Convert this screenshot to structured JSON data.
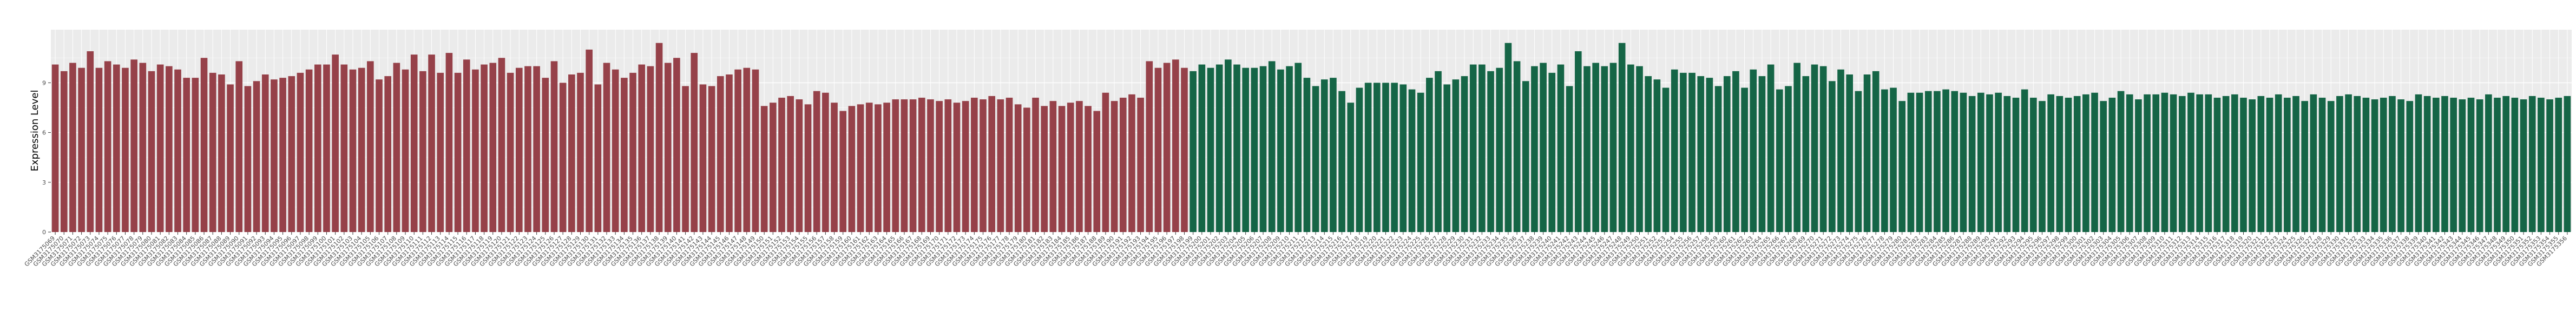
{
  "chart_data": {
    "type": "bar",
    "title": "",
    "xlabel": "",
    "ylabel": "Expression Level",
    "ylim": [
      0,
      12.2
    ],
    "yticks": [
      0,
      3,
      6,
      9
    ],
    "grid": true,
    "legend": "none",
    "colors": {
      "group_a": "#964149",
      "group_b": "#156546",
      "panel": "#ebebeb",
      "grid_major": "#ffffff",
      "grid_minor": "#f5f5f5"
    },
    "categories": [
      "GSM3175069",
      "GSM3175070",
      "GSM3175071",
      "GSM3175072",
      "GSM3175073",
      "GSM3175074",
      "GSM3175075",
      "GSM3175076",
      "GSM3175077",
      "GSM3175078",
      "GSM3175079",
      "GSM3175080",
      "GSM3175081",
      "GSM3175082",
      "GSM3175083",
      "GSM3175084",
      "GSM3175085",
      "GSM3175086",
      "GSM3175087",
      "GSM3175088",
      "GSM3175089",
      "GSM3175090",
      "GSM3175091",
      "GSM3175092",
      "GSM3175093",
      "GSM3175094",
      "GSM3175095",
      "GSM3175096",
      "GSM3175097",
      "GSM3175098",
      "GSM3175099",
      "GSM3175100",
      "GSM3175101",
      "GSM3175102",
      "GSM3175103",
      "GSM3175104",
      "GSM3175105",
      "GSM3175106",
      "GSM3175107",
      "GSM3175108",
      "GSM3175109",
      "GSM3175110",
      "GSM3175111",
      "GSM3175112",
      "GSM3175113",
      "GSM3175114",
      "GSM3175115",
      "GSM3175116",
      "GSM3175117",
      "GSM3175118",
      "GSM3175119",
      "GSM3175120",
      "GSM3175121",
      "GSM3175122",
      "GSM3175123",
      "GSM3175124",
      "GSM3175125",
      "GSM3175126",
      "GSM3175127",
      "GSM3175128",
      "GSM3175129",
      "GSM3175130",
      "GSM3175131",
      "GSM3175132",
      "GSM3175133",
      "GSM3175134",
      "GSM3175135",
      "GSM3175136",
      "GSM3175137",
      "GSM3175138",
      "GSM3175139",
      "GSM3175140",
      "GSM3175141",
      "GSM3175142",
      "GSM3175143",
      "GSM3175144",
      "GSM3175145",
      "GSM3175146",
      "GSM3175147",
      "GSM3175148",
      "GSM3175149",
      "GSM3175150",
      "GSM3175151",
      "GSM3175152",
      "GSM3175153",
      "GSM3175154",
      "GSM3175155",
      "GSM3175156",
      "GSM3175157",
      "GSM3175158",
      "GSM3175159",
      "GSM3175160",
      "GSM3175161",
      "GSM3175162",
      "GSM3175163",
      "GSM3175164",
      "GSM3175165",
      "GSM3175166",
      "GSM3175167",
      "GSM3175168",
      "GSM3175169",
      "GSM3175170",
      "GSM3175171",
      "GSM3175172",
      "GSM3175173",
      "GSM3175174",
      "GSM3175175",
      "GSM3175176",
      "GSM3175177",
      "GSM3175178",
      "GSM3175179",
      "GSM3175180",
      "GSM3175181",
      "GSM3175182",
      "GSM3175183",
      "GSM3175184",
      "GSM3175185",
      "GSM3175186",
      "GSM3175187",
      "GSM3175188",
      "GSM3175189",
      "GSM3175190",
      "GSM3175191",
      "GSM3175192",
      "GSM3175193",
      "GSM3175194",
      "GSM3175195",
      "GSM3175196",
      "GSM3175197",
      "GSM3175198",
      "GSM3175199",
      "GSM3175200",
      "GSM3175201",
      "GSM3175202",
      "GSM3175203",
      "GSM3175204",
      "GSM3175205",
      "GSM3175206",
      "GSM3175207",
      "GSM3175208",
      "GSM3175209",
      "GSM3175210",
      "GSM3175211",
      "GSM3175212",
      "GSM3175213",
      "GSM3175214",
      "GSM3175215",
      "GSM3175216",
      "GSM3175217",
      "GSM3175218",
      "GSM3175219",
      "GSM3175220",
      "GSM3175221",
      "GSM3175222",
      "GSM3175223",
      "GSM3175224",
      "GSM3175225",
      "GSM3175226",
      "GSM3175227",
      "GSM3175228",
      "GSM3175229",
      "GSM3175230",
      "GSM3175231",
      "GSM3175232",
      "GSM3175233",
      "GSM3175234",
      "GSM3175235",
      "GSM3175236",
      "GSM3175237",
      "GSM3175238",
      "GSM3175239",
      "GSM3175240",
      "GSM3175241",
      "GSM3175242",
      "GSM3175243",
      "GSM3175244",
      "GSM3175245",
      "GSM3175246",
      "GSM3175247",
      "GSM3175248",
      "GSM3175249",
      "GSM3175250",
      "GSM3175251",
      "GSM3175252",
      "GSM3175253",
      "GSM3175254",
      "GSM3175255",
      "GSM3175256",
      "GSM3175257",
      "GSM3175258",
      "GSM3175259",
      "GSM3175260",
      "GSM3175261",
      "GSM3175262",
      "GSM3175263",
      "GSM3175264",
      "GSM3175265",
      "GSM3175266",
      "GSM3175267",
      "GSM3175268",
      "GSM3175269",
      "GSM3175270",
      "GSM3175271",
      "GSM3175272",
      "GSM3175273",
      "GSM3175274",
      "GSM3175275",
      "GSM3175276",
      "GSM3175277",
      "GSM3175278",
      "GSM3175279",
      "GSM3175280",
      "GSM3175281",
      "GSM3175282",
      "GSM3175283",
      "GSM3175284",
      "GSM3175285",
      "GSM3175286",
      "GSM3175287",
      "GSM3175288",
      "GSM3175289",
      "GSM3175290",
      "GSM3175291",
      "GSM3175292",
      "GSM3175293",
      "GSM3175294",
      "GSM3175295",
      "GSM3175296",
      "GSM3175297",
      "GSM3175298",
      "GSM3175299",
      "GSM3175300",
      "GSM3175301",
      "GSM3175302",
      "GSM3175303",
      "GSM3175304",
      "GSM3175305",
      "GSM3175306",
      "GSM3175307",
      "GSM3175308",
      "GSM3175309",
      "GSM3175310",
      "GSM3175311",
      "GSM3175312",
      "GSM3175313",
      "GSM3175314",
      "GSM3175315",
      "GSM3175316",
      "GSM3175317",
      "GSM3175318",
      "GSM3175319",
      "GSM3175320",
      "GSM3175321",
      "GSM3175322",
      "GSM3175323",
      "GSM3175324",
      "GSM3175325",
      "GSM3175326",
      "GSM3175327",
      "GSM3175328",
      "GSM3175329",
      "GSM3175330",
      "GSM3175331",
      "GSM3175332",
      "GSM3175333",
      "GSM3175334",
      "GSM3175335",
      "GSM3175336",
      "GSM3175337",
      "GSM3175338",
      "GSM3175339",
      "GSM3175340",
      "GSM3175341",
      "GSM3175342",
      "GSM3175343",
      "GSM3175344",
      "GSM3175345",
      "GSM3175346",
      "GSM3175347",
      "GSM3175348",
      "GSM3175349",
      "GSM3175350",
      "GSM3175351",
      "GSM3175352",
      "GSM3175353",
      "GSM3175354",
      "GSM3175355",
      "GSM3175356"
    ],
    "values": [
      10.1,
      9.7,
      10.2,
      9.9,
      10.9,
      9.9,
      10.3,
      10.1,
      9.9,
      10.4,
      10.2,
      9.7,
      10.1,
      10,
      9.8,
      9.3,
      9.3,
      10.5,
      9.6,
      9.5,
      8.9,
      10.3,
      8.8,
      9.1,
      9.5,
      9.2,
      9.3,
      9.4,
      9.6,
      9.8,
      10.1,
      10.1,
      10.7,
      10.1,
      9.8,
      9.9,
      10.3,
      9.2,
      9.4,
      10.2,
      9.8,
      10.7,
      9.7,
      10.7,
      9.6,
      10.8,
      9.6,
      10.4,
      9.8,
      10.1,
      10.2,
      10.5,
      9.6,
      9.9,
      10.0,
      10.0,
      9.3,
      10.3,
      9.0,
      9.5,
      9.6,
      11.0,
      8.9,
      10.2,
      9.8,
      9.3,
      9.6,
      10.1,
      10,
      11.4,
      10.2,
      10.5,
      8.8,
      10.8,
      8.9,
      8.8,
      9.4,
      9.5,
      9.8,
      9.9,
      9.8,
      7.6,
      7.8,
      8.1,
      8.2,
      8.0,
      7.7,
      8.5,
      8.4,
      7.8,
      7.3,
      7.6,
      7.7,
      7.8,
      7.7,
      7.8,
      8.0,
      8.0,
      8.0,
      8.1,
      8.0,
      7.9,
      8.0,
      7.8,
      7.9,
      8.1,
      8.0,
      8.2,
      8.0,
      8.1,
      7.7,
      7.5,
      8.1,
      7.6,
      7.9,
      7.6,
      7.8,
      7.9,
      7.6,
      7.3,
      8.4,
      7.9,
      8.1,
      8.3,
      8.1,
      10.3,
      9.9,
      10.2,
      10.4,
      9.9,
      9.7,
      10.1,
      9.9,
      10.1,
      10.4,
      10.1,
      9.9,
      9.9,
      10.0,
      10.3,
      9.8,
      10.0,
      10.2,
      9.3,
      8.8,
      9.2,
      9.3,
      8.5,
      7.8,
      8.7,
      9.0,
      9.0,
      9.0,
      9.0,
      8.9,
      8.6,
      8.4,
      9.3,
      9.7,
      8.9,
      9.2,
      9.4,
      10.1,
      10.1,
      9.7,
      9.9,
      11.4,
      10.3,
      9.1,
      10.0,
      10.2,
      9.6,
      10.1,
      8.8,
      10.9,
      10.0,
      10.2,
      10.0,
      10.2,
      11.4,
      10.1,
      10.0,
      9.4,
      9.2,
      8.7,
      9.8,
      9.6,
      9.6,
      9.4,
      9.3,
      8.8,
      9.4,
      9.7,
      8.7,
      9.8,
      9.4,
      10.1,
      8.6,
      8.8,
      10.2,
      9.4,
      10.1,
      10.0,
      9.1,
      9.8,
      9.5,
      8.5,
      9.5,
      9.7,
      8.6,
      8.7,
      7.9,
      8.4,
      8.4,
      8.5,
      8.5,
      8.6,
      8.5,
      8.4,
      8.2,
      8.4,
      8.3,
      8.4,
      8.2,
      8.1,
      8.6,
      8.1,
      7.9,
      8.3,
      8.2,
      8.1,
      8.2,
      8.3,
      8.4,
      7.9,
      8.1,
      8.5,
      8.3,
      8.0,
      8.3,
      8.3,
      8.4,
      8.3,
      8.2,
      8.4,
      8.3,
      8.3,
      8.1,
      8.2,
      8.3,
      8.1,
      8.0,
      8.2,
      8.1,
      8.3,
      8.1,
      8.2,
      7.9,
      8.3,
      8.1,
      7.9,
      8.2,
      8.3,
      8.2,
      8.1,
      8.0,
      8.1,
      8.2,
      8.0,
      7.9,
      8.3,
      8.2,
      8.1,
      8.2,
      8.1,
      8.0,
      8.1,
      8.0,
      8.3,
      8.1,
      8.2,
      8.1,
      8.0,
      8.2,
      8.1,
      8.0,
      8.1,
      8.2
    ],
    "group_split_index": 130
  }
}
